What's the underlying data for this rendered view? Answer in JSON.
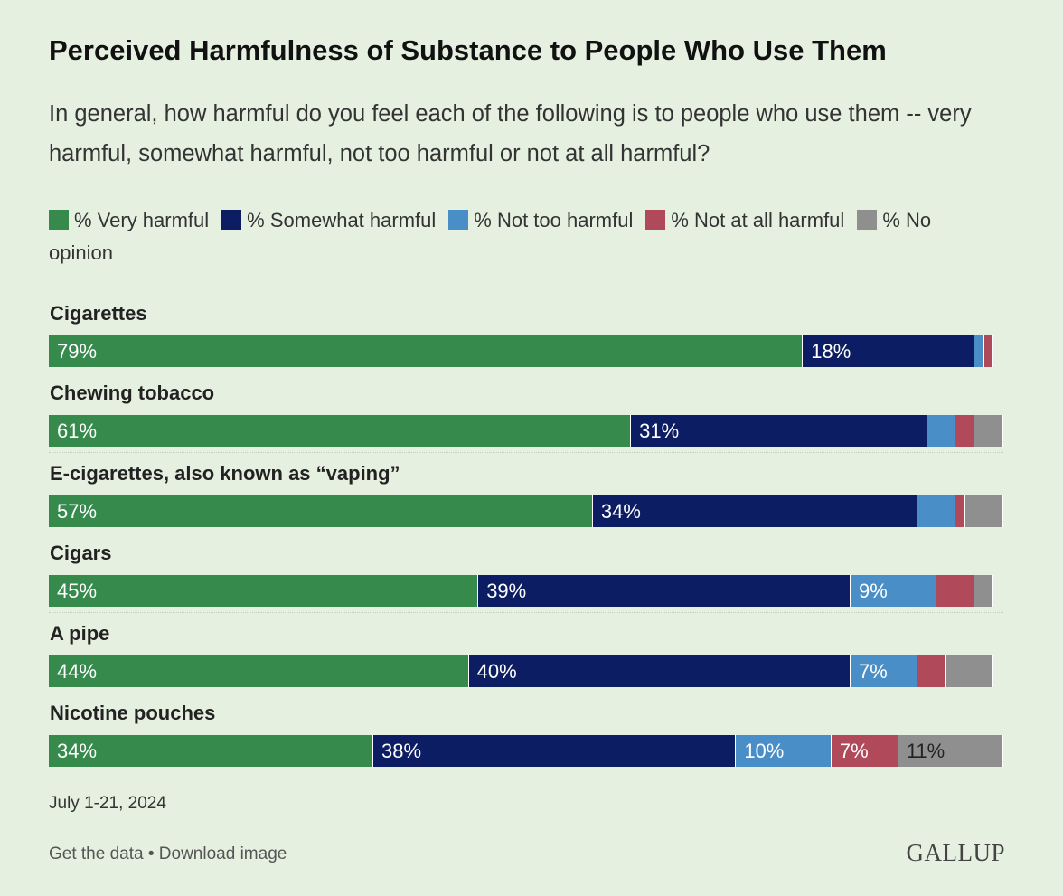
{
  "header": {
    "title": "Perceived Harmfulness of Substance to People Who Use Them",
    "subtitle": "In general, how harmful do you feel each of the following is to people who use them -- very harmful, somewhat harmful, not too harmful or not at all harmful?"
  },
  "colors": {
    "very": "#358a4c",
    "somewhat": "#0c1d63",
    "not_too": "#4a8ec7",
    "not_at_all": "#b04a5a",
    "no_opinion": "#8f8f8f"
  },
  "chart_data": {
    "type": "bar",
    "orientation": "horizontal-stacked-100",
    "title": "Perceived Harmfulness of Substance to People Who Use Them",
    "categories": [
      "Cigarettes",
      "Chewing tobacco",
      "E-cigarettes, also known as “vaping”",
      "Cigars",
      "A pipe",
      "Nicotine pouches"
    ],
    "series": [
      {
        "name": "% Very harmful",
        "values": [
          79,
          61,
          57,
          45,
          44,
          34
        ]
      },
      {
        "name": "% Somewhat harmful",
        "values": [
          18,
          31,
          34,
          39,
          40,
          38
        ]
      },
      {
        "name": "% Not too harmful",
        "values": [
          1,
          3,
          4,
          9,
          7,
          10
        ]
      },
      {
        "name": "% Not at all harmful",
        "values": [
          1,
          2,
          1,
          4,
          3,
          7
        ]
      },
      {
        "name": "% No opinion",
        "values": [
          0,
          3,
          4,
          2,
          5,
          11
        ]
      }
    ],
    "legend_position": "top",
    "label_threshold": 7
  },
  "footer": {
    "date": "July 1-21, 2024",
    "get_data": "Get the data",
    "separator": "•",
    "download": "Download image",
    "brand": "GALLUP"
  }
}
